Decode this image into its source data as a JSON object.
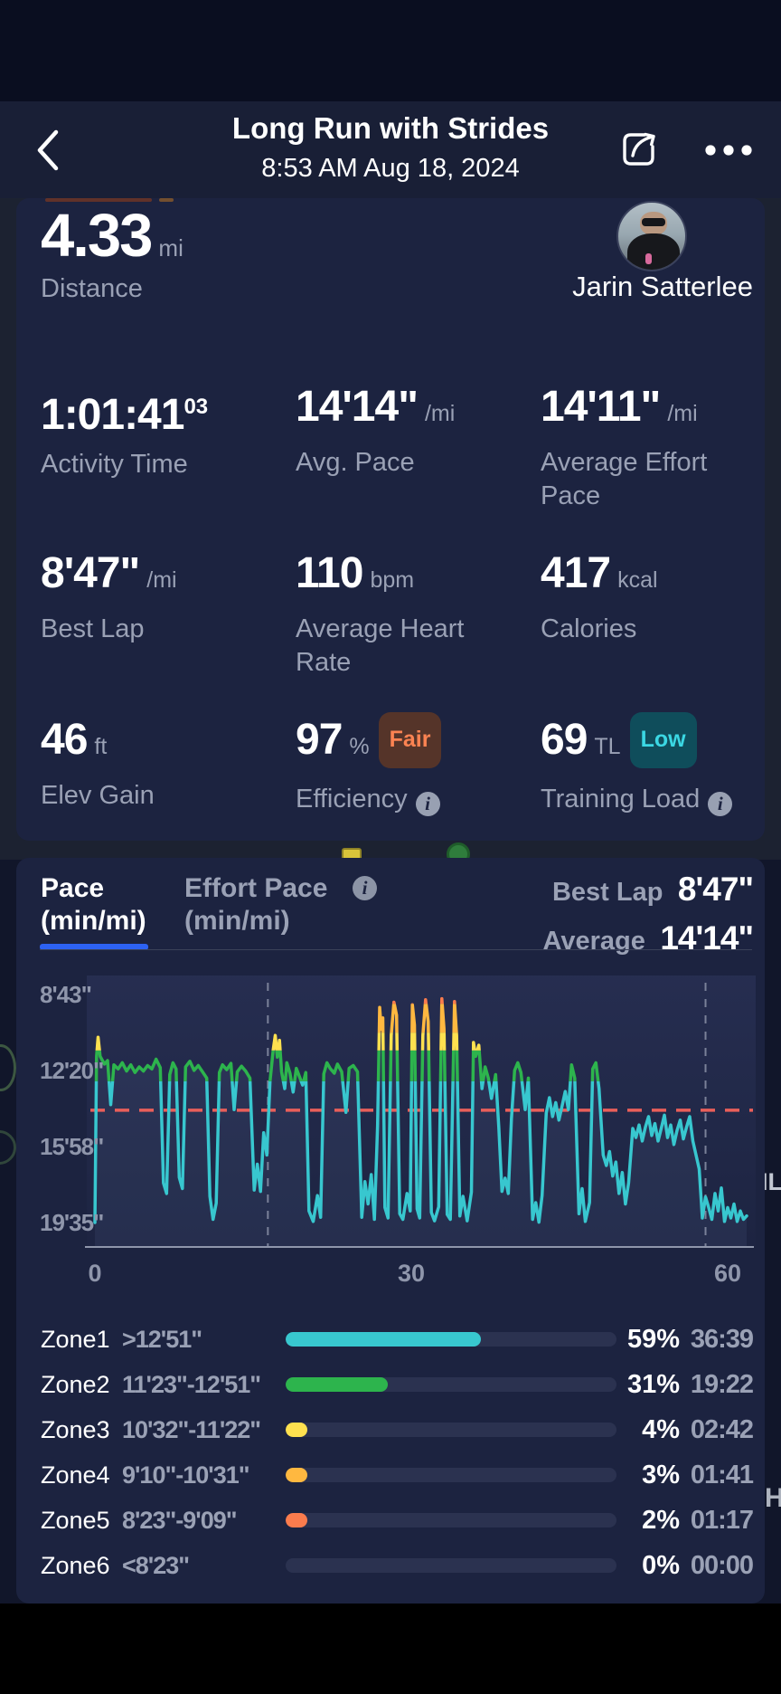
{
  "header": {
    "title": "Long Run with Strides",
    "datetime": "8:53 AM Aug 18, 2024"
  },
  "athlete": {
    "name": "Jarin Satterlee"
  },
  "map": {
    "fragments": [
      "IL",
      "H"
    ]
  },
  "colors": {
    "accent_blue": "#2d62f2",
    "card_bg": "#1c2340",
    "header_bg": "#191f36",
    "secondary_text": "#9aa1b5",
    "average_line": "#e95f5a"
  },
  "summary": {
    "distance": {
      "value": "4.33",
      "unit": "mi",
      "label": "Distance"
    },
    "stats": [
      {
        "value": "1:01:41",
        "sup": "03",
        "unit": "",
        "label": "Activity Time"
      },
      {
        "value": "14'14\"",
        "unit": "/mi",
        "label": "Avg. Pace"
      },
      {
        "value": "14'11\"",
        "unit": "/mi",
        "label": "Average Effort Pace"
      },
      {
        "value": "8'47\"",
        "unit": "/mi",
        "label": "Best Lap"
      },
      {
        "value": "110",
        "unit": "bpm",
        "label": "Average Heart Rate"
      },
      {
        "value": "417",
        "unit": "kcal",
        "label": "Calories"
      },
      {
        "value": "46",
        "unit": "ft",
        "label": "Elev Gain"
      },
      {
        "value": "97",
        "unit": "%",
        "badge": {
          "text": "Fair",
          "bg": "#553429",
          "fg": "#fb8352"
        },
        "label": "Efficiency",
        "info": true
      },
      {
        "value": "69",
        "unit": "TL",
        "badge": {
          "text": "Low",
          "bg": "#0f4d5b",
          "fg": "#3bd7e3"
        },
        "label": "Training Load",
        "info": true
      }
    ]
  },
  "pace_card": {
    "tab_pace": {
      "line1": "Pace",
      "line2": "(min/mi)"
    },
    "tab_effort": {
      "line1": "Effort Pace",
      "line2": "(min/mi)"
    },
    "best_lap_label": "Best Lap",
    "best_lap_value": "8'47\"",
    "average_label": "Average",
    "average_value": "14'14\""
  },
  "chart_data": {
    "type": "line",
    "title": "Pace (min/mi)",
    "x_axis": {
      "unit": "min",
      "range": [
        0,
        62
      ],
      "ticks": [
        {
          "label": "0",
          "min": 0
        },
        {
          "label": "30",
          "min": 30
        },
        {
          "label": "60",
          "min": 60
        }
      ]
    },
    "y_axis": {
      "unit": "pace sec/mi",
      "inverted": true,
      "ticks": [
        {
          "label": "8'43\"",
          "sec": 523
        },
        {
          "label": "12'20\"",
          "sec": 740
        },
        {
          "label": "15'58\"",
          "sec": 958
        },
        {
          "label": "19'35\"",
          "sec": 1175
        }
      ]
    },
    "average": {
      "label": "14'14\"",
      "sec": 854,
      "color": "#e95f5a"
    },
    "markers_min": [
      16.4,
      57.9
    ],
    "bands": [
      {
        "zone": "Zone6",
        "from_sec": 380,
        "to_sec": 503,
        "color": "#ef4f35"
      },
      {
        "zone": "Zone5",
        "from_sec": 503,
        "to_sec": 550,
        "color": "#fb7c4d"
      },
      {
        "zone": "Zone4",
        "from_sec": 550,
        "to_sec": 632,
        "color": "#ffb840"
      },
      {
        "zone": "Zone3",
        "from_sec": 632,
        "to_sec": 683,
        "color": "#ffe14f"
      },
      {
        "zone": "Zone2",
        "from_sec": 683,
        "to_sec": 771,
        "color": "#2db44d"
      },
      {
        "zone": "Zone1",
        "from_sec": 771,
        "to_sec": 1260,
        "color": "#38c7cf"
      }
    ],
    "series": [
      {
        "name": "Pace",
        "points": [
          [
            0,
            1175
          ],
          [
            0.15,
            700
          ],
          [
            0.3,
            645
          ],
          [
            0.5,
            700
          ],
          [
            0.9,
            722
          ],
          [
            1.2,
            712
          ],
          [
            1.5,
            838
          ],
          [
            1.8,
            724
          ],
          [
            2.2,
            736
          ],
          [
            2.6,
            718
          ],
          [
            3,
            742
          ],
          [
            3.4,
            724
          ],
          [
            3.8,
            746
          ],
          [
            4.2,
            730
          ],
          [
            4.6,
            742
          ],
          [
            5,
            726
          ],
          [
            5.4,
            736
          ],
          [
            5.8,
            708
          ],
          [
            6.2,
            732
          ],
          [
            6.5,
            1062
          ],
          [
            6.8,
            1092
          ],
          [
            7.1,
            752
          ],
          [
            7.4,
            718
          ],
          [
            7.7,
            736
          ],
          [
            8,
            1046
          ],
          [
            8.3,
            1078
          ],
          [
            8.6,
            730
          ],
          [
            9,
            714
          ],
          [
            9.4,
            740
          ],
          [
            9.8,
            726
          ],
          [
            10.2,
            744
          ],
          [
            10.6,
            762
          ],
          [
            10.9,
            1100
          ],
          [
            11.2,
            1166
          ],
          [
            11.5,
            1120
          ],
          [
            11.8,
            746
          ],
          [
            12.1,
            724
          ],
          [
            12.5,
            738
          ],
          [
            12.9,
            720
          ],
          [
            13.2,
            852
          ],
          [
            13.5,
            744
          ],
          [
            13.9,
            728
          ],
          [
            14.3,
            742
          ],
          [
            14.7,
            762
          ],
          [
            15.1,
            1082
          ],
          [
            15.4,
            1008
          ],
          [
            15.7,
            1086
          ],
          [
            16,
            918
          ],
          [
            16.3,
            982
          ],
          [
            16.6,
            772
          ],
          [
            16.9,
            682
          ],
          [
            17.1,
            640
          ],
          [
            17.3,
            702
          ],
          [
            17.5,
            654
          ],
          [
            17.7,
            744
          ],
          [
            18,
            792
          ],
          [
            18.2,
            718
          ],
          [
            18.5,
            748
          ],
          [
            18.8,
            802
          ],
          [
            19.1,
            734
          ],
          [
            19.4,
            758
          ],
          [
            19.7,
            782
          ],
          [
            20,
            746
          ],
          [
            20.3,
            1142
          ],
          [
            20.7,
            1172
          ],
          [
            21.1,
            1098
          ],
          [
            21.4,
            1160
          ],
          [
            21.7,
            750
          ],
          [
            22,
            718
          ],
          [
            22.3,
            734
          ],
          [
            22.7,
            748
          ],
          [
            23,
            722
          ],
          [
            23.4,
            744
          ],
          [
            23.8,
            860
          ],
          [
            24.1,
            734
          ],
          [
            24.5,
            726
          ],
          [
            24.9,
            744
          ],
          [
            25.3,
            1160
          ],
          [
            25.6,
            1058
          ],
          [
            25.9,
            1122
          ],
          [
            26.2,
            1038
          ],
          [
            26.5,
            1166
          ],
          [
            26.8,
            898
          ],
          [
            27,
            560
          ],
          [
            27.15,
            622
          ],
          [
            27.3,
            590
          ],
          [
            27.5,
            1132
          ],
          [
            27.8,
            1162
          ],
          [
            28.1,
            640
          ],
          [
            28.35,
            545
          ],
          [
            28.6,
            582
          ],
          [
            28.9,
            1150
          ],
          [
            29.2,
            1166
          ],
          [
            29.6,
            1092
          ],
          [
            29.9,
            1142
          ],
          [
            30.1,
            552
          ],
          [
            30.3,
            610
          ],
          [
            30.55,
            1136
          ],
          [
            30.8,
            1162
          ],
          [
            31.1,
            640
          ],
          [
            31.35,
            538
          ],
          [
            31.6,
            600
          ],
          [
            31.9,
            1146
          ],
          [
            32.2,
            1170
          ],
          [
            32.6,
            1130
          ],
          [
            32.9,
            535
          ],
          [
            33.1,
            622
          ],
          [
            33.4,
            1152
          ],
          [
            33.7,
            1166
          ],
          [
            34.1,
            543
          ],
          [
            34.3,
            642
          ],
          [
            34.6,
            1156
          ],
          [
            34.9,
            1100
          ],
          [
            35.3,
            1170
          ],
          [
            35.7,
            1088
          ],
          [
            35.9,
            660
          ],
          [
            36.1,
            700
          ],
          [
            36.4,
            668
          ],
          [
            36.7,
            792
          ],
          [
            37,
            730
          ],
          [
            37.3,
            762
          ],
          [
            37.6,
            820
          ],
          [
            38,
            752
          ],
          [
            38.3,
            902
          ],
          [
            38.6,
            1086
          ],
          [
            38.9,
            1048
          ],
          [
            39.2,
            1092
          ],
          [
            39.5,
            878
          ],
          [
            39.8,
            740
          ],
          [
            40.1,
            718
          ],
          [
            40.4,
            746
          ],
          [
            40.8,
            852
          ],
          [
            41.1,
            762
          ],
          [
            41.5,
            1166
          ],
          [
            41.8,
            1118
          ],
          [
            42.1,
            1174
          ],
          [
            42.4,
            1098
          ],
          [
            42.8,
            862
          ],
          [
            43.1,
            818
          ],
          [
            43.4,
            872
          ],
          [
            43.7,
            832
          ],
          [
            44,
            882
          ],
          [
            44.3,
            842
          ],
          [
            44.6,
            800
          ],
          [
            44.9,
            852
          ],
          [
            45.2,
            724
          ],
          [
            45.5,
            762
          ],
          [
            45.9,
            1150
          ],
          [
            46.2,
            1078
          ],
          [
            46.5,
            1172
          ],
          [
            46.9,
            1118
          ],
          [
            47.2,
            736
          ],
          [
            47.5,
            718
          ],
          [
            47.8,
            792
          ],
          [
            48.2,
            982
          ],
          [
            48.5,
            1012
          ],
          [
            48.8,
            972
          ],
          [
            49.1,
            1042
          ],
          [
            49.4,
            1002
          ],
          [
            49.7,
            1092
          ],
          [
            50,
            1032
          ],
          [
            50.3,
            1122
          ],
          [
            50.6,
            1062
          ],
          [
            51,
            906
          ],
          [
            51.3,
            932
          ],
          [
            51.6,
            896
          ],
          [
            51.9,
            942
          ],
          [
            52.2,
            902
          ],
          [
            52.5,
            872
          ],
          [
            52.8,
            926
          ],
          [
            53.1,
            892
          ],
          [
            53.4,
            942
          ],
          [
            53.7,
            906
          ],
          [
            54,
            868
          ],
          [
            54.3,
            932
          ],
          [
            54.6,
            896
          ],
          [
            54.9,
            952
          ],
          [
            55.2,
            912
          ],
          [
            55.5,
            882
          ],
          [
            55.8,
            936
          ],
          [
            56.1,
            902
          ],
          [
            56.4,
            872
          ],
          [
            56.7,
            942
          ],
          [
            57,
            982
          ],
          [
            57.3,
            1022
          ],
          [
            57.6,
            1162
          ],
          [
            57.9,
            1102
          ],
          [
            58.2,
            1132
          ],
          [
            58.5,
            1166
          ],
          [
            58.8,
            1092
          ],
          [
            59.1,
            1142
          ],
          [
            59.4,
            1076
          ],
          [
            59.7,
            1172
          ],
          [
            60,
            1132
          ],
          [
            60.3,
            1162
          ],
          [
            60.6,
            1122
          ],
          [
            60.9,
            1172
          ],
          [
            61.2,
            1142
          ],
          [
            61.5,
            1166
          ],
          [
            61.8,
            1156
          ]
        ]
      }
    ]
  },
  "zones": [
    {
      "zone": "Zone1",
      "range": ">12'51\"",
      "pct": 59,
      "pct_label": "59%",
      "time": "36:39",
      "color": "#38c7cf"
    },
    {
      "zone": "Zone2",
      "range": "11'23\"-12'51\"",
      "pct": 31,
      "pct_label": "31%",
      "time": "19:22",
      "color": "#2db44d"
    },
    {
      "zone": "Zone3",
      "range": "10'32\"-11'22\"",
      "pct": 4,
      "pct_label": "4%",
      "time": "02:42",
      "color": "#ffe14f"
    },
    {
      "zone": "Zone4",
      "range": "9'10\"-10'31\"",
      "pct": 3,
      "pct_label": "3%",
      "time": "01:41",
      "color": "#ffb840"
    },
    {
      "zone": "Zone5",
      "range": "8'23\"-9'09\"",
      "pct": 2,
      "pct_label": "2%",
      "time": "01:17",
      "color": "#fb7c4d"
    },
    {
      "zone": "Zone6",
      "range": "<8'23\"",
      "pct": 0,
      "pct_label": "0%",
      "time": "00:00",
      "color": "#3a425e"
    }
  ]
}
